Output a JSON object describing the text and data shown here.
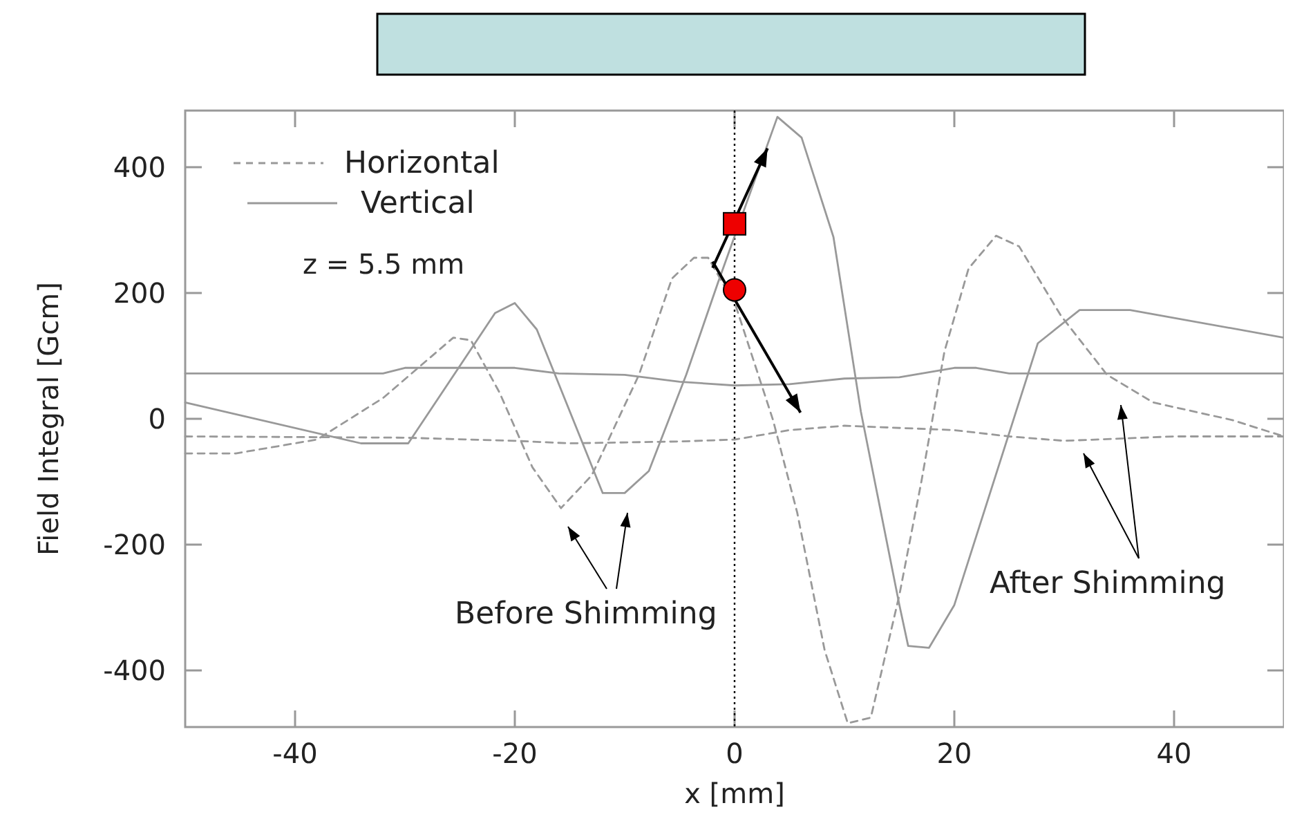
{
  "chart_data": {
    "type": "line",
    "xlabel": "x [mm]",
    "ylabel": "Field Integral [Gcm]",
    "xlim": [
      -50,
      50
    ],
    "ylim": [
      -490,
      490
    ],
    "xticks": [
      -40,
      -20,
      0,
      20,
      40
    ],
    "yticks": [
      -400,
      -200,
      0,
      200,
      400
    ],
    "grid": false,
    "legend": "top left",
    "marker": "none",
    "ref_lines": [
      {
        "axis": "x",
        "value": 0,
        "color": "#000000",
        "line_style": "dotted"
      }
    ],
    "annotations": [
      "z = 5.5 mm",
      "Before Shimming",
      "After Shimming"
    ],
    "series": [
      {
        "name": "Horizontal",
        "color": "#999999",
        "line_style": "dashed",
        "x": [
          -50,
          -45.4,
          -38,
          -32,
          -25.6,
          -24,
          -21.4,
          -18.4,
          -15.8,
          -13,
          -8.7,
          -5.7,
          -3.7,
          -2.4,
          0.1,
          3.5,
          5.7,
          8.2,
          10.3,
          12.4,
          15,
          17,
          19.1,
          21.3,
          23.8,
          25.9,
          29.7,
          33.9,
          38.1,
          45.3,
          50
        ],
        "values": [
          -55,
          -55,
          -33,
          33,
          129,
          125,
          42,
          -77,
          -142,
          -90,
          70,
          223,
          256,
          256,
          180,
          -2,
          -149,
          -368,
          -484,
          -475,
          -280,
          -100,
          107,
          239,
          291,
          274,
          164,
          70,
          26,
          -2,
          -28
        ]
      },
      {
        "name": "Vertical",
        "color": "#999999",
        "line_style": "solid",
        "x": [
          -50,
          -34,
          -29.7,
          -21.8,
          -20,
          -18,
          -12,
          -10,
          -7.8,
          -4.4,
          -1.5,
          3.9,
          6.1,
          9,
          11.5,
          15,
          15.8,
          17.7,
          20,
          27.6,
          31.4,
          36,
          50
        ],
        "values": [
          26,
          -39,
          -39,
          168,
          184,
          142,
          -118,
          -118,
          -83,
          70,
          217,
          480,
          447,
          289,
          11,
          -296,
          -361,
          -364,
          -296,
          120,
          173,
          173,
          129
        ]
      },
      {
        "color": "#999999",
        "line_style": "dashed",
        "x": [
          -50,
          -30,
          -20,
          -15,
          -5,
          0,
          5,
          10,
          20,
          25,
          30,
          40,
          50
        ],
        "values": [
          -28,
          -30,
          -35,
          -39,
          -36,
          -33,
          -18,
          -11,
          -18,
          -28,
          -35,
          -28,
          -28
        ]
      },
      {
        "color": "#999999",
        "line_style": "solid",
        "x": [
          -50,
          -35,
          -32,
          -30,
          -20,
          -16,
          -10,
          -5,
          0,
          5,
          10,
          15,
          20,
          22,
          25,
          50
        ],
        "values": [
          72,
          72,
          72,
          81,
          81,
          72,
          70,
          59,
          53,
          55,
          64,
          66,
          81,
          81,
          72,
          72
        ]
      }
    ]
  }
}
